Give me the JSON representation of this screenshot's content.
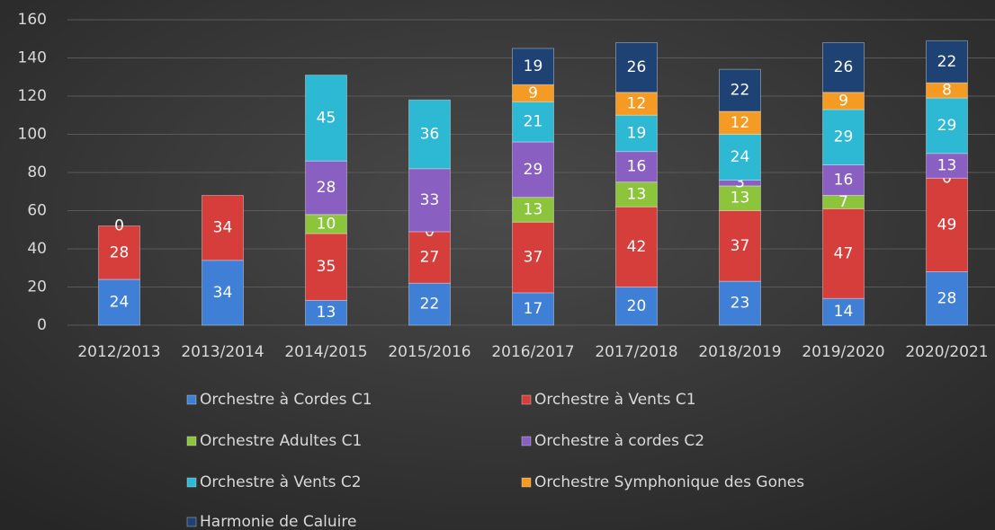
{
  "chart_data": {
    "type": "stacked-bar",
    "categories": [
      "2012/2013",
      "2013/2014",
      "2014/2015",
      "2015/2016",
      "2016/2017",
      "2017/2018",
      "2018/2019",
      "2019/2020",
      "2020/2021"
    ],
    "series": [
      {
        "name": "Orchestre à Cordes C1",
        "color": "#3f7fd6",
        "values": [
          24,
          34,
          13,
          22,
          17,
          20,
          23,
          14,
          28
        ]
      },
      {
        "name": "Orchestre à Vents C1",
        "color": "#d63e3c",
        "values": [
          28,
          34,
          35,
          27,
          37,
          42,
          37,
          47,
          49
        ]
      },
      {
        "name": "Orchestre Adultes C1",
        "color": "#8cc43c",
        "values": [
          0,
          null,
          10,
          0,
          13,
          13,
          13,
          7,
          0
        ]
      },
      {
        "name": "Orchestre à cordes C2",
        "color": "#8a5fc2",
        "values": [
          null,
          null,
          28,
          33,
          29,
          16,
          3,
          16,
          13
        ]
      },
      {
        "name": "Orchestre à Vents C2",
        "color": "#2db8d3",
        "values": [
          null,
          null,
          45,
          36,
          21,
          19,
          24,
          29,
          29
        ]
      },
      {
        "name": "Orchestre Symphonique des Gones",
        "color": "#f59a22",
        "values": [
          null,
          null,
          null,
          null,
          9,
          12,
          12,
          9,
          8
        ]
      },
      {
        "name": "Harmonie de Caluire",
        "color": "#1f4274",
        "values": [
          null,
          null,
          null,
          null,
          19,
          26,
          22,
          26,
          22
        ]
      }
    ],
    "ylim": [
      0,
      160
    ],
    "yticks": [
      0,
      20,
      40,
      60,
      80,
      100,
      120,
      140,
      160
    ],
    "grid": true,
    "legend": "bottom"
  }
}
